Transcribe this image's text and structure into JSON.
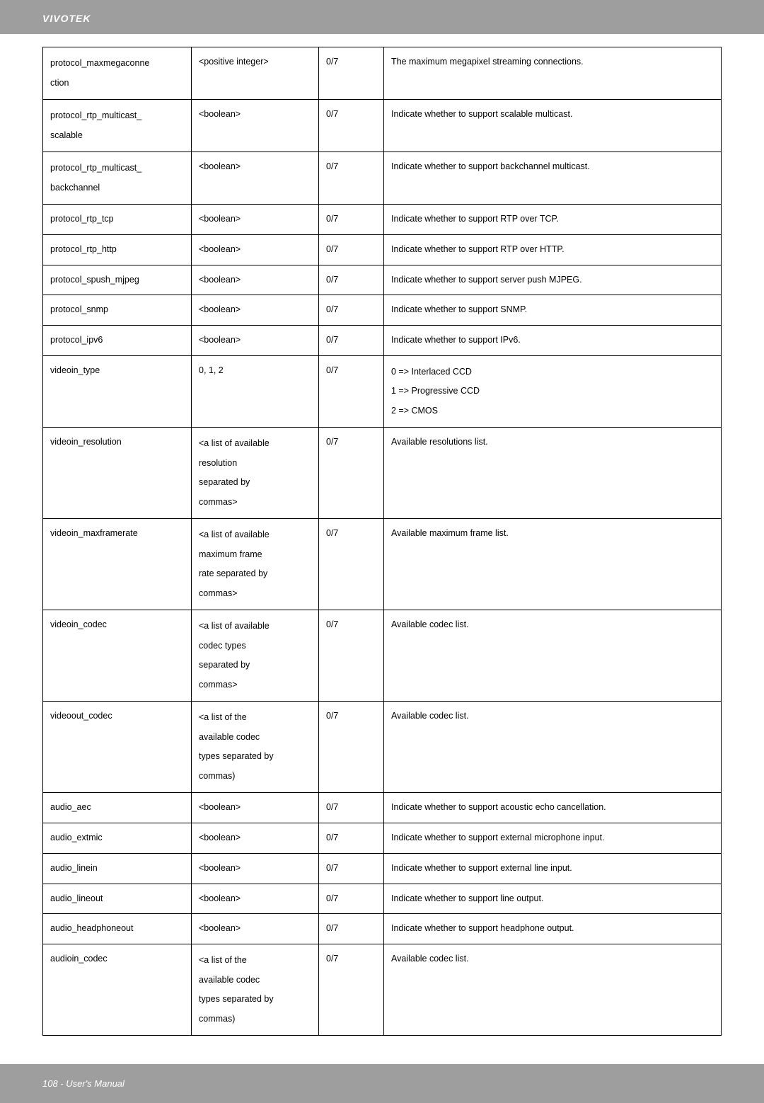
{
  "header": {
    "brand": "VIVOTEK"
  },
  "footer": {
    "text": "108 - User's Manual"
  },
  "table": {
    "rows": [
      {
        "c1": "protocol_maxmegaconne\nction",
        "c2": "<positive integer>",
        "c3": "0/7",
        "c4": "The maximum megapixel streaming connections."
      },
      {
        "c1": "protocol_rtp_multicast_\nscalable",
        "c2": "<boolean>",
        "c3": "0/7",
        "c4": "Indicate whether to support scalable multicast."
      },
      {
        "c1": "protocol_rtp_multicast_\nbackchannel",
        "c2": "<boolean>",
        "c3": "0/7",
        "c4": "Indicate whether to support backchannel multicast."
      },
      {
        "c1": "protocol_rtp_tcp",
        "c2": "<boolean>",
        "c3": "0/7",
        "c4": "Indicate whether to support RTP over TCP."
      },
      {
        "c1": "protocol_rtp_http",
        "c2": "<boolean>",
        "c3": "0/7",
        "c4": "Indicate whether to support RTP over HTTP."
      },
      {
        "c1": "protocol_spush_mjpeg",
        "c2": "<boolean>",
        "c3": "0/7",
        "c4": "Indicate whether to support server push MJPEG."
      },
      {
        "c1": "protocol_snmp",
        "c2": "<boolean>",
        "c3": "0/7",
        "c4": "Indicate whether to support SNMP."
      },
      {
        "c1": "protocol_ipv6",
        "c2": "<boolean>",
        "c3": "0/7",
        "c4": "Indicate whether to support IPv6."
      },
      {
        "c1": "videoin_type",
        "c2": "0, 1, 2",
        "c3": "0/7",
        "c4": "0 => Interlaced CCD\n1 => Progressive CCD\n2 => CMOS"
      },
      {
        "c1": "videoin_resolution",
        "c2": "<a list of available\nresolution\nseparated by\ncommas>",
        "c3": "0/7",
        "c4": "Available resolutions list."
      },
      {
        "c1": "videoin_maxframerate",
        "c2": "<a list of available\nmaximum frame\nrate separated by\ncommas>",
        "c3": "0/7",
        "c4": "Available maximum frame list."
      },
      {
        "c1": "videoin_codec",
        "c2": "<a list of available\ncodec types\nseparated by\ncommas>",
        "c3": "0/7",
        "c4": "Available codec list."
      },
      {
        "c1": "videoout_codec",
        "c2": "<a list of the\navailable codec\ntypes separated by\ncommas)",
        "c3": "0/7",
        "c4": "Available codec list."
      },
      {
        "c1": "audio_aec",
        "c2": "<boolean>",
        "c3": "0/7",
        "c4": "Indicate whether to support acoustic echo cancellation."
      },
      {
        "c1": "audio_extmic",
        "c2": "<boolean>",
        "c3": "0/7",
        "c4": "Indicate whether to support external microphone input."
      },
      {
        "c1": "audio_linein",
        "c2": "<boolean>",
        "c3": "0/7",
        "c4": "Indicate whether to support external line input."
      },
      {
        "c1": "audio_lineout",
        "c2": "<boolean>",
        "c3": "0/7",
        "c4": "Indicate whether to support line output."
      },
      {
        "c1": "audio_headphoneout",
        "c2": "<boolean>",
        "c3": "0/7",
        "c4": "Indicate whether to support headphone output."
      },
      {
        "c1": "audioin_codec",
        "c2": "<a list of the\navailable codec\ntypes separated by\ncommas)",
        "c3": "0/7",
        "c4": "Available codec list."
      }
    ]
  }
}
